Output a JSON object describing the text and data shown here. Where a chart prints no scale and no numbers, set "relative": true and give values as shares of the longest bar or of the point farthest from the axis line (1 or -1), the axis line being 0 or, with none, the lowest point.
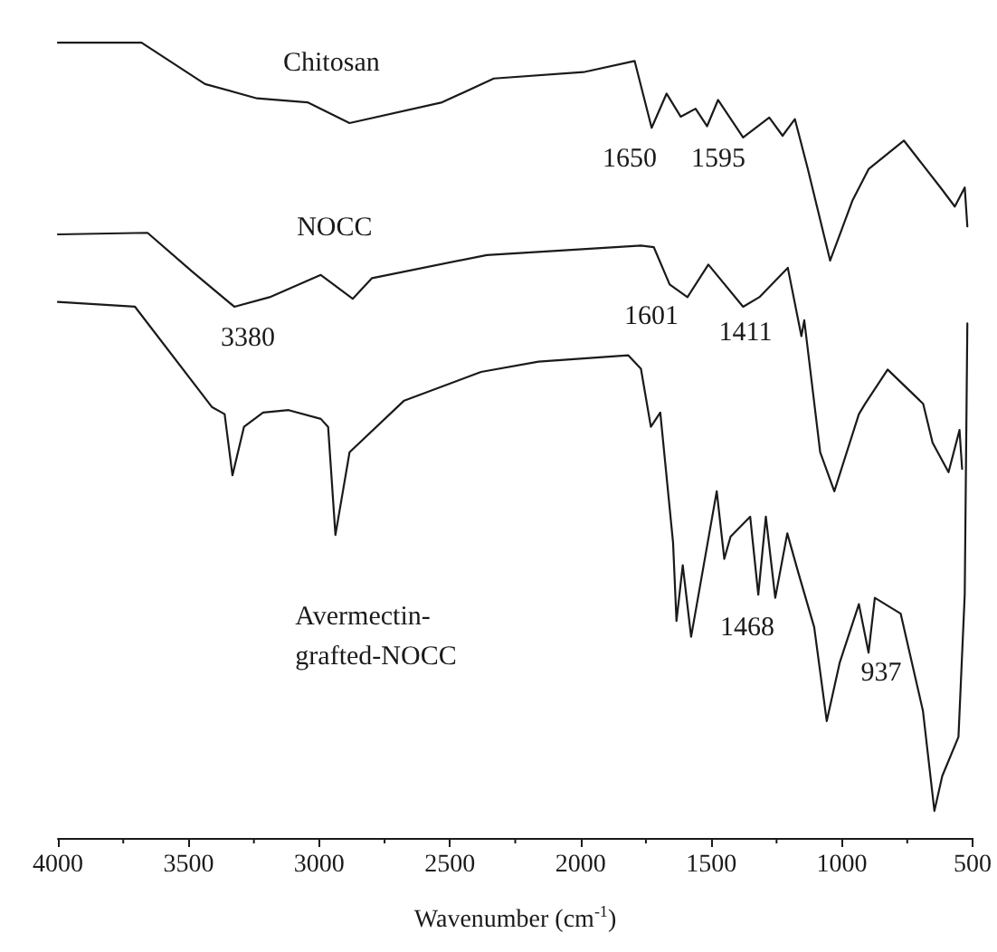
{
  "chart_data": {
    "type": "line",
    "relative": true,
    "xlabel": "Wavenumber (cm$^{-1}$)",
    "xlim": [
      4000,
      500
    ],
    "xticks": [
      4000,
      3500,
      3000,
      2500,
      2000,
      1500,
      1000,
      500
    ],
    "grid": false,
    "marker": "none",
    "line_style": "solid",
    "series": [
      {
        "name": "Chitosan",
        "color": "#1a1a1a",
        "x": [
          4000,
          3680,
          3437,
          3238,
          3045,
          2884,
          2530,
          2332,
          1989,
          1793,
          1728,
          1671,
          1617,
          1560,
          1516,
          1474,
          1378,
          1278,
          1227,
          1180,
          1131,
          1045,
          959,
          898,
          763,
          616,
          568,
          530,
          520
        ],
        "values": [
          1.0,
          1.0,
          0.948,
          0.93,
          0.925,
          0.899,
          0.925,
          0.955,
          0.963,
          0.977,
          0.893,
          0.936,
          0.907,
          0.917,
          0.895,
          0.928,
          0.881,
          0.906,
          0.883,
          0.904,
          0.842,
          0.726,
          0.802,
          0.841,
          0.877,
          0.815,
          0.794,
          0.818,
          0.769
        ]
      },
      {
        "name": "NOCC",
        "color": "#1a1a1a",
        "x": [
          4000,
          3657,
          3485,
          3325,
          3190,
          2994,
          2872,
          2798,
          2359,
          1769,
          1720,
          1659,
          1591,
          1511,
          1378,
          1316,
          1207,
          1155,
          1144,
          1083,
          1029,
          935,
          911,
          825,
          689,
          653,
          592,
          550,
          540
        ],
        "values": [
          0.759,
          0.761,
          0.712,
          0.668,
          0.68,
          0.708,
          0.678,
          0.704,
          0.733,
          0.745,
          0.743,
          0.696,
          0.68,
          0.721,
          0.668,
          0.68,
          0.717,
          0.631,
          0.651,
          0.485,
          0.436,
          0.533,
          0.546,
          0.589,
          0.546,
          0.497,
          0.46,
          0.513,
          0.464
        ]
      },
      {
        "name": "Avermectin-\ngrafted-NOCC",
        "color": "#1a1a1a",
        "x": [
          4000,
          3705,
          3411,
          3362,
          3332,
          3288,
          3215,
          3117,
          2994,
          2966,
          2938,
          2884,
          2675,
          2381,
          2161,
          1818,
          1769,
          1731,
          1695,
          1646,
          1633,
          1609,
          1577,
          1479,
          1450,
          1426,
          1351,
          1320,
          1291,
          1255,
          1209,
          1168,
          1106,
          1058,
          1008,
          935,
          898,
          874,
          775,
          690,
          646,
          616,
          554,
          530,
          520
        ],
        "values": [
          0.674,
          0.668,
          0.542,
          0.533,
          0.456,
          0.517,
          0.535,
          0.538,
          0.527,
          0.517,
          0.381,
          0.485,
          0.55,
          0.586,
          0.599,
          0.607,
          0.59,
          0.517,
          0.535,
          0.371,
          0.273,
          0.343,
          0.253,
          0.436,
          0.351,
          0.379,
          0.404,
          0.306,
          0.404,
          0.302,
          0.383,
          0.335,
          0.265,
          0.147,
          0.221,
          0.294,
          0.233,
          0.302,
          0.282,
          0.16,
          0.034,
          0.078,
          0.127,
          0.306,
          0.647
        ]
      }
    ],
    "annotations": [
      "1650",
      "1595",
      "3380",
      "1601",
      "1411",
      "1468",
      "937"
    ]
  }
}
